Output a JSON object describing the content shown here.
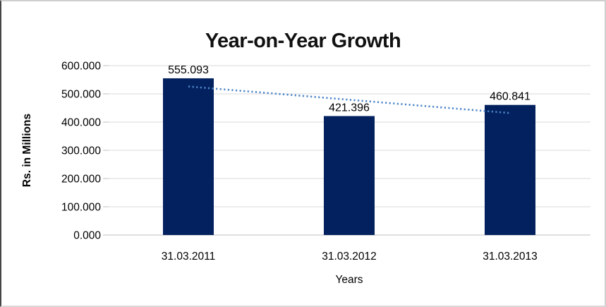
{
  "chart_data": {
    "type": "bar",
    "title": "Year-on-Year Growth",
    "categories": [
      "31.03.2011",
      "31.03.2012",
      "31.03.2013"
    ],
    "values": [
      555.093,
      421.396,
      460.841
    ],
    "data_labels": [
      "555.093",
      "421.396",
      "460.841"
    ],
    "xlabel": "Years",
    "ylabel": "Rs. in Millions",
    "ylim": [
      0,
      600
    ],
    "ytick_interval": 100,
    "ytick_labels": [
      "0.000",
      "100.000",
      "200.000",
      "300.000",
      "400.000",
      "500.000",
      "600.000"
    ],
    "grid": true,
    "legend": "none",
    "trendline": {
      "type": "linear",
      "style": "dotted"
    },
    "colors": {
      "bar": "#02215E",
      "trendline": "#4E86C8",
      "gridline": "#D9D9D9",
      "axis_line": "#BFBFBF",
      "text": "#000000",
      "title": "#111111"
    }
  }
}
